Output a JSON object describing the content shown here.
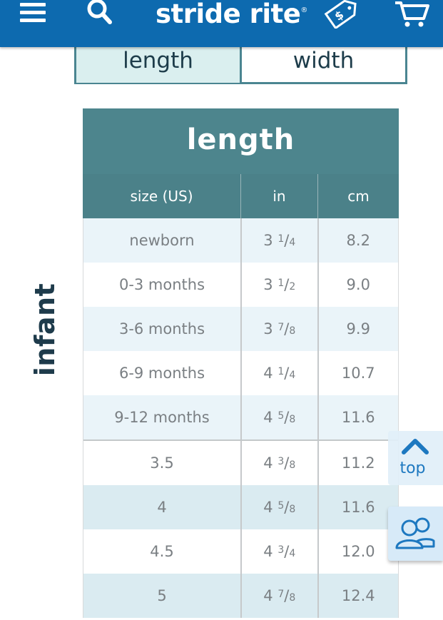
{
  "header": {
    "logo_text": "stride rite",
    "logo_mark": "®",
    "icons": [
      "menu-icon",
      "search-icon",
      "sale-tag-icon",
      "cart-icon"
    ],
    "brand_color": "#0d6aaf"
  },
  "toggle": {
    "length_label": "length",
    "width_label": "width",
    "selected": "length"
  },
  "side_label": "infant",
  "table": {
    "title": "length",
    "columns": [
      "size (US)",
      "in",
      "cm"
    ],
    "rows": [
      {
        "size": "newborn",
        "in_whole": "3",
        "in_num": "1",
        "in_den": "4",
        "cm": "8.2"
      },
      {
        "size": "0-3 months",
        "in_whole": "3",
        "in_num": "1",
        "in_den": "2",
        "cm": "9.0"
      },
      {
        "size": "3-6 months",
        "in_whole": "3",
        "in_num": "7",
        "in_den": "8",
        "cm": "9.9"
      },
      {
        "size": "6-9 months",
        "in_whole": "4",
        "in_num": "1",
        "in_den": "4",
        "cm": "10.7"
      },
      {
        "size": "9-12 months",
        "in_whole": "4",
        "in_num": "5",
        "in_den": "8",
        "cm": "11.6"
      },
      {
        "size": "3.5",
        "in_whole": "4",
        "in_num": "3",
        "in_den": "8",
        "cm": "11.2"
      },
      {
        "size": "4",
        "in_whole": "4",
        "in_num": "5",
        "in_den": "8",
        "cm": "11.6"
      },
      {
        "size": "4.5",
        "in_whole": "4",
        "in_num": "3",
        "in_den": "4",
        "cm": "12.0"
      },
      {
        "size": "5",
        "in_whole": "4",
        "in_num": "7",
        "in_den": "8",
        "cm": "12.4"
      }
    ]
  },
  "floating": {
    "top_label": "top",
    "chat_icon": "people-icon"
  }
}
